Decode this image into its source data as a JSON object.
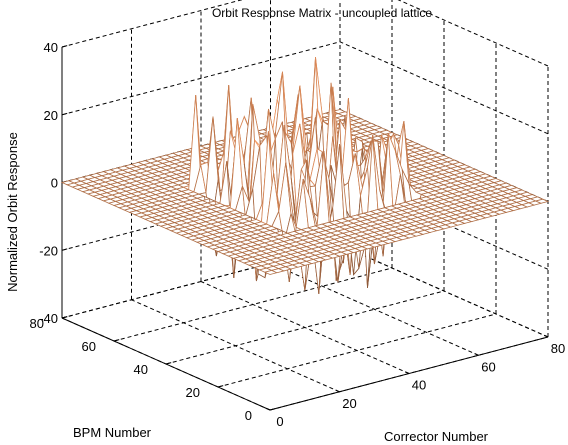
{
  "chart_data": {
    "type": "surface",
    "title": "Orbit Response Matrix - uncoupled lattice",
    "xlabel": "Corrector Number",
    "ylabel": "BPM Number",
    "zlabel": "Normalized Orbit Response",
    "xlim": [
      0,
      80
    ],
    "ylim": [
      0,
      80
    ],
    "zlim": [
      -40,
      40
    ],
    "xticks": [
      0,
      20,
      40,
      60,
      80
    ],
    "yticks": [
      0,
      20,
      40,
      60,
      80
    ],
    "zticks": [
      -40,
      -20,
      0,
      20,
      40
    ],
    "grid": true,
    "colormap": "copper",
    "block": {
      "bpm_range": [
        20,
        60
      ],
      "corrector_range": [
        20,
        60
      ],
      "amplitude_range": [
        -30,
        35
      ]
    },
    "off_block_value": 0
  }
}
